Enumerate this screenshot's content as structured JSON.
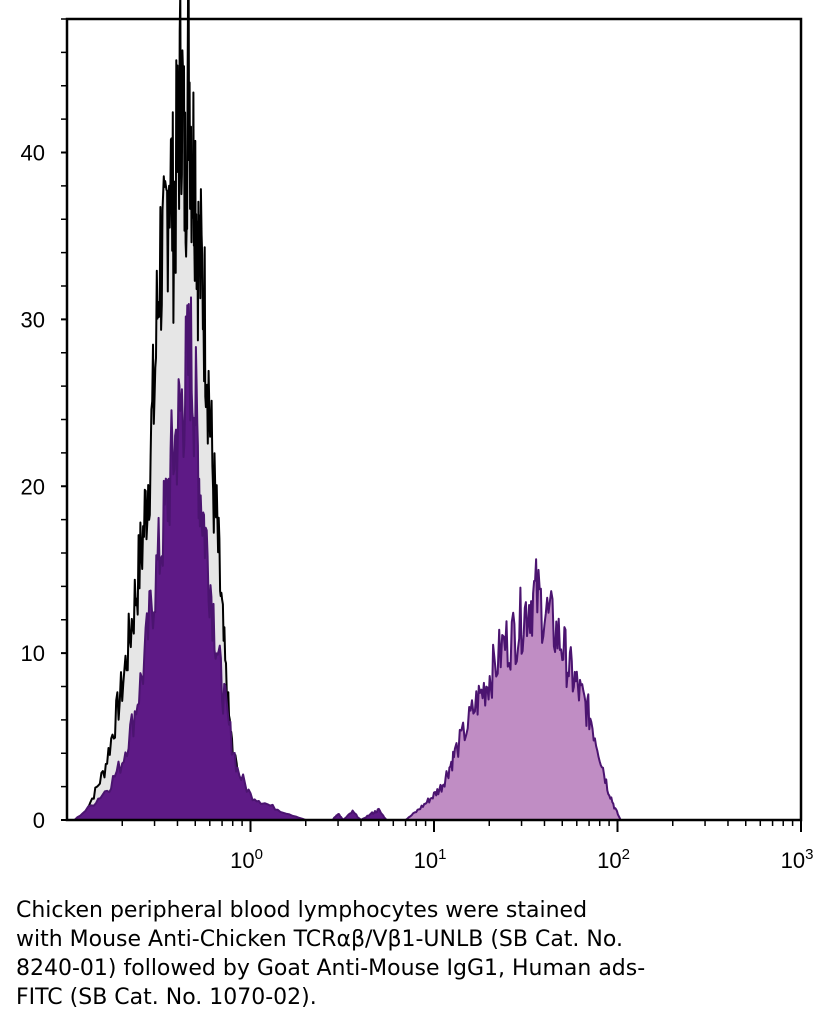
{
  "chart_data": {
    "type": "area",
    "title": "",
    "xlabel": "",
    "ylabel": "",
    "x_scale": "log",
    "xlim": [
      0.1,
      1000
    ],
    "ylim": [
      0,
      48
    ],
    "grid": false,
    "x_ticks": [
      {
        "base": "10",
        "exp": "0",
        "value": 1
      },
      {
        "base": "10",
        "exp": "1",
        "value": 10
      },
      {
        "base": "10",
        "exp": "2",
        "value": 100
      },
      {
        "base": "10",
        "exp": "3",
        "value": 1000
      }
    ],
    "y_ticks": [
      {
        "label": "0",
        "value": 0
      },
      {
        "label": "10",
        "value": 10
      },
      {
        "label": "20",
        "value": 20
      },
      {
        "label": "30",
        "value": 30
      },
      {
        "label": "40",
        "value": 40
      }
    ],
    "series": [
      {
        "role": "control",
        "fill": "#e6e6e6",
        "stroke": "#000000",
        "x": [
          0.12,
          0.14,
          0.16,
          0.18,
          0.2,
          0.22,
          0.24,
          0.26,
          0.28,
          0.3,
          0.32,
          0.34,
          0.36,
          0.38,
          0.4,
          0.42,
          0.44,
          0.46,
          0.48,
          0.5,
          0.52,
          0.55,
          0.58,
          0.62,
          0.66,
          0.7,
          0.75,
          0.8,
          0.9,
          1.0,
          1.2,
          1.5
        ],
        "y": [
          0,
          1.5,
          3,
          5.5,
          8,
          11,
          14,
          17,
          21,
          26,
          34,
          33,
          40,
          36,
          40,
          45,
          38,
          46,
          40,
          39,
          34,
          32,
          28,
          21,
          17,
          12,
          7,
          4,
          2,
          1,
          0.5,
          0
        ]
      },
      {
        "role": "stained",
        "fill": "#5e1a86",
        "stroke": "#4b1470",
        "x": [
          0.11,
          0.14,
          0.17,
          0.2,
          0.23,
          0.26,
          0.29,
          0.32,
          0.35,
          0.38,
          0.41,
          0.44,
          0.47,
          0.5,
          0.53,
          0.57,
          0.62,
          0.68,
          0.75,
          0.85,
          1.0,
          1.2,
          1.5,
          2.0
        ],
        "y": [
          0,
          1,
          2,
          3.5,
          6,
          9,
          13,
          16,
          19,
          22,
          24,
          26,
          28,
          25,
          20,
          17,
          13,
          9,
          6,
          3,
          1.5,
          1,
          0.5,
          0
        ]
      },
      {
        "role": "stained",
        "fill": "#c08dc4",
        "stroke": "#4b1470",
        "x": [
          7,
          8,
          9,
          10,
          11,
          12,
          13,
          15,
          17,
          19,
          21,
          24,
          27,
          30,
          33,
          36,
          40,
          45,
          50,
          55,
          60,
          66,
          72,
          80,
          88,
          96,
          104
        ],
        "y": [
          0,
          0.5,
          1,
          1.5,
          2,
          3,
          4,
          5.5,
          7,
          8,
          9,
          10.5,
          11,
          12,
          13,
          13.5,
          12.5,
          11.5,
          10.5,
          9,
          8,
          7,
          6,
          4,
          2,
          0.8,
          0
        ]
      },
      {
        "role": "noise",
        "fill": "#5e1a86",
        "stroke": "#4b1470",
        "x": [
          2.8,
          3.0,
          3.2,
          3.6,
          4.0,
          4.6,
          5.0,
          5.5
        ],
        "y": [
          0,
          0.4,
          0,
          0.5,
          0,
          0.4,
          0.6,
          0
        ]
      }
    ]
  },
  "caption": {
    "lines": [
      "Chicken peripheral blood lymphocytes were stained",
      "with Mouse Anti-Chicken TCRαβ/Vβ1-UNLB (SB Cat. No.",
      "8240-01) followed by Goat Anti-Mouse IgG1, Human ads-",
      "FITC (SB Cat. No. 1070-02)."
    ]
  }
}
